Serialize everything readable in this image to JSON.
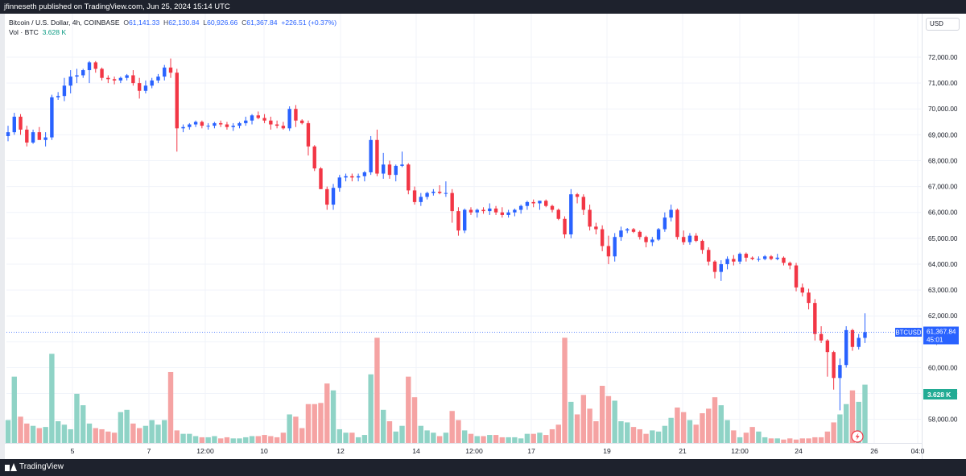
{
  "header": {
    "published": "jfinneseth published on TradingView.com, Jun 25, 2024 15:14 UTC"
  },
  "legend": {
    "symbol": "Bitcoin / U.S. Dollar, 4h, COINBASE",
    "open_label": "O",
    "open": "61,141.33",
    "high_label": "H",
    "high": "62,130.84",
    "low_label": "L",
    "low": "60,926.66",
    "close_label": "C",
    "close": "61,367.84",
    "change": "+226.51 (+0.37%)",
    "vol_label": "Vol · BTC",
    "vol_value": "3.628 K"
  },
  "currency": "USD",
  "footer": {
    "brand": "TradingView"
  },
  "colors": {
    "up": "#2962ff",
    "down": "#f23645",
    "vol_up": "#8fd3c6",
    "vol_down": "#f5a3a3",
    "price_line": "#2962ff",
    "vol_badge": "#22ab94"
  },
  "chart_data": {
    "type": "candlestick",
    "symbol": "BTCUSD",
    "interval": "4h",
    "y_ticks": [
      "72,000.00",
      "71,000.00",
      "70,000.00",
      "69,000.00",
      "68,000.00",
      "67,000.00",
      "66,000.00",
      "65,000.00",
      "64,000.00",
      "63,000.00",
      "62,000.00",
      "61,000.00",
      "60,000.00",
      "59,000.00",
      "58,000.00"
    ],
    "x_ticks": [
      "5",
      "7",
      "12:00",
      "10",
      "12",
      "14",
      "12:00",
      "17",
      "19",
      "21",
      "12:00",
      "24",
      "26",
      "04:0"
    ],
    "last_price_label": "BTCUSD",
    "last_price": "61,367.84",
    "countdown": "45:01",
    "volume_badge": "3.628 K",
    "ylim": [
      57500,
      72600
    ],
    "last_price_value": 61367.84,
    "candles": [
      [
        68950,
        69350,
        68750,
        69100
      ],
      [
        69100,
        69850,
        69000,
        69700
      ],
      [
        69700,
        69800,
        69000,
        69200
      ],
      [
        69200,
        69350,
        68550,
        68700
      ],
      [
        68700,
        69200,
        68650,
        69100
      ],
      [
        69100,
        69300,
        68850,
        68800
      ],
      [
        68800,
        69100,
        68550,
        68900
      ],
      [
        68900,
        70550,
        68800,
        70450
      ],
      [
        70450,
        70650,
        70350,
        70500
      ],
      [
        70500,
        71200,
        70300,
        70900
      ],
      [
        70900,
        71500,
        70600,
        71250
      ],
      [
        71250,
        71550,
        71000,
        71300
      ],
      [
        71300,
        71550,
        71200,
        71500
      ],
      [
        71500,
        71850,
        71000,
        71800
      ],
      [
        71800,
        71850,
        71400,
        71550
      ],
      [
        71550,
        71600,
        71100,
        71200
      ],
      [
        71200,
        71300,
        71000,
        71150
      ],
      [
        71150,
        71250,
        70950,
        71100
      ],
      [
        71100,
        71250,
        71000,
        71200
      ],
      [
        71200,
        71350,
        71100,
        71300
      ],
      [
        71300,
        71500,
        70900,
        71000
      ],
      [
        71000,
        71200,
        70400,
        70700
      ],
      [
        70700,
        71100,
        70600,
        70900
      ],
      [
        70900,
        71200,
        70800,
        71100
      ],
      [
        71100,
        71350,
        71000,
        71250
      ],
      [
        71250,
        71700,
        71100,
        71600
      ],
      [
        71600,
        71950,
        71200,
        71400
      ],
      [
        71400,
        71550,
        68350,
        69250
      ],
      [
        69250,
        69400,
        69100,
        69300
      ],
      [
        69300,
        69450,
        69200,
        69400
      ],
      [
        69400,
        69550,
        69300,
        69500
      ],
      [
        69500,
        69550,
        69250,
        69350
      ],
      [
        69350,
        69450,
        69200,
        69350
      ],
      [
        69350,
        69500,
        69250,
        69450
      ],
      [
        69450,
        69550,
        69300,
        69400
      ],
      [
        69400,
        69500,
        69200,
        69300
      ],
      [
        69300,
        69450,
        69150,
        69350
      ],
      [
        69350,
        69500,
        69250,
        69450
      ],
      [
        69450,
        69700,
        69350,
        69550
      ],
      [
        69550,
        69800,
        69400,
        69750
      ],
      [
        69750,
        69900,
        69600,
        69650
      ],
      [
        69650,
        69800,
        69450,
        69550
      ],
      [
        69550,
        69700,
        69200,
        69400
      ],
      [
        69400,
        69550,
        69250,
        69350
      ],
      [
        69350,
        69500,
        69200,
        69250
      ],
      [
        69250,
        70100,
        69150,
        70000
      ],
      [
        70000,
        70150,
        69300,
        69550
      ],
      [
        69550,
        69600,
        69400,
        69450
      ],
      [
        69450,
        69550,
        68200,
        68550
      ],
      [
        68550,
        68600,
        67600,
        67700
      ],
      [
        67700,
        67750,
        66900,
        66900
      ],
      [
        66900,
        67000,
        66100,
        66300
      ],
      [
        66300,
        67100,
        66100,
        66950
      ],
      [
        66950,
        67450,
        66800,
        67350
      ],
      [
        67350,
        67500,
        67200,
        67400
      ],
      [
        67400,
        67500,
        67200,
        67350
      ],
      [
        67350,
        67500,
        67200,
        67400
      ],
      [
        67400,
        67600,
        67200,
        67550
      ],
      [
        67550,
        68950,
        67450,
        68800
      ],
      [
        68800,
        69200,
        67400,
        67500
      ],
      [
        67500,
        68300,
        67300,
        67850
      ],
      [
        67850,
        68000,
        67300,
        67450
      ],
      [
        67450,
        67850,
        67200,
        67800
      ],
      [
        67800,
        68350,
        67750,
        67850
      ],
      [
        67850,
        67900,
        66700,
        66850
      ],
      [
        66850,
        67000,
        66300,
        66400
      ],
      [
        66400,
        66750,
        66250,
        66600
      ],
      [
        66600,
        66800,
        66500,
        66750
      ],
      [
        66750,
        66900,
        66650,
        66800
      ],
      [
        66800,
        67050,
        66700,
        66750
      ],
      [
        66750,
        67200,
        66600,
        66750
      ],
      [
        66750,
        66900,
        65600,
        66050
      ],
      [
        66050,
        66200,
        65100,
        65300
      ],
      [
        65300,
        66150,
        65200,
        66100
      ],
      [
        66100,
        66200,
        65900,
        66000
      ],
      [
        66000,
        66150,
        65800,
        66100
      ],
      [
        66100,
        66200,
        65950,
        66050
      ],
      [
        66050,
        66350,
        65900,
        66150
      ],
      [
        66150,
        66250,
        65900,
        66000
      ],
      [
        66000,
        66200,
        65800,
        65900
      ],
      [
        65900,
        66100,
        65800,
        66000
      ],
      [
        66000,
        66150,
        65850,
        66100
      ],
      [
        66100,
        66300,
        65950,
        66250
      ],
      [
        66250,
        66450,
        66100,
        66400
      ],
      [
        66400,
        66500,
        66200,
        66350
      ],
      [
        66350,
        66450,
        66100,
        66450
      ],
      [
        66450,
        66500,
        66200,
        66250
      ],
      [
        66250,
        66300,
        66000,
        66100
      ],
      [
        66100,
        66150,
        65700,
        65750
      ],
      [
        65750,
        65850,
        65000,
        65150
      ],
      [
        65150,
        66900,
        65000,
        66700
      ],
      [
        66700,
        66750,
        66350,
        66600
      ],
      [
        66600,
        66700,
        65900,
        66100
      ],
      [
        66100,
        66300,
        65300,
        65450
      ],
      [
        65450,
        65600,
        65150,
        65350
      ],
      [
        65350,
        65500,
        64500,
        64700
      ],
      [
        64700,
        65100,
        64000,
        64300
      ],
      [
        64300,
        65200,
        64100,
        65050
      ],
      [
        65050,
        65450,
        64900,
        65300
      ],
      [
        65300,
        65400,
        65200,
        65350
      ],
      [
        65350,
        65400,
        65200,
        65250
      ],
      [
        65250,
        65300,
        64950,
        65050
      ],
      [
        65050,
        65100,
        64650,
        64850
      ],
      [
        64850,
        65050,
        64700,
        64950
      ],
      [
        64950,
        65400,
        64900,
        65350
      ],
      [
        65350,
        66000,
        65250,
        65800
      ],
      [
        65800,
        66300,
        65650,
        66100
      ],
      [
        66100,
        66150,
        64950,
        65050
      ],
      [
        65050,
        65300,
        64750,
        64850
      ],
      [
        64850,
        65200,
        64750,
        65100
      ],
      [
        65100,
        65200,
        64850,
        64900
      ],
      [
        64900,
        64950,
        64400,
        64550
      ],
      [
        64550,
        64650,
        63950,
        64100
      ],
      [
        64100,
        64150,
        63450,
        63700
      ],
      [
        63700,
        64150,
        63350,
        64000
      ],
      [
        64000,
        64300,
        63800,
        64200
      ],
      [
        64200,
        64350,
        63950,
        64100
      ],
      [
        64100,
        64450,
        64000,
        64400
      ],
      [
        64400,
        64450,
        64100,
        64250
      ],
      [
        64250,
        64300,
        64150,
        64200
      ],
      [
        64200,
        64300,
        64100,
        64200
      ],
      [
        64200,
        64350,
        64150,
        64300
      ],
      [
        64300,
        64350,
        64150,
        64200
      ],
      [
        64200,
        64400,
        64150,
        64250
      ],
      [
        64250,
        64300,
        63950,
        64050
      ],
      [
        64050,
        64100,
        63800,
        63950
      ],
      [
        63950,
        64050,
        62950,
        63100
      ],
      [
        63100,
        63250,
        62750,
        62900
      ],
      [
        62900,
        63050,
        62250,
        62500
      ],
      [
        62500,
        62650,
        61050,
        61300
      ],
      [
        61300,
        61600,
        60950,
        61050
      ],
      [
        61050,
        61100,
        59650,
        60600
      ],
      [
        60600,
        60650,
        59150,
        59600
      ],
      [
        59600,
        60350,
        58350,
        60100
      ],
      [
        60100,
        61600,
        60000,
        61450
      ],
      [
        61450,
        61500,
        60650,
        60800
      ],
      [
        60800,
        61300,
        60700,
        61150
      ],
      [
        61150,
        62100,
        60950,
        61370
      ]
    ],
    "volume_scale": [
      0,
      1
    ],
    "volume": [
      0.2,
      0.58,
      0.23,
      0.17,
      0.15,
      0.13,
      0.14,
      0.78,
      0.19,
      0.16,
      0.12,
      0.43,
      0.33,
      0.17,
      0.13,
      0.12,
      0.1,
      0.09,
      0.27,
      0.29,
      0.17,
      0.13,
      0.15,
      0.2,
      0.16,
      0.2,
      0.62,
      0.11,
      0.08,
      0.08,
      0.06,
      0.05,
      0.05,
      0.06,
      0.04,
      0.05,
      0.04,
      0.04,
      0.05,
      0.06,
      0.06,
      0.07,
      0.06,
      0.05,
      0.09,
      0.25,
      0.23,
      0.13,
      0.34,
      0.34,
      0.35,
      0.52,
      0.46,
      0.12,
      0.09,
      0.09,
      0.05,
      0.07,
      0.6,
      0.92,
      0.29,
      0.19,
      0.1,
      0.15,
      0.58,
      0.4,
      0.15,
      0.11,
      0.09,
      0.06,
      0.09,
      0.28,
      0.2,
      0.11,
      0.08,
      0.06,
      0.06,
      0.07,
      0.07,
      0.05,
      0.05,
      0.05,
      0.04,
      0.08,
      0.08,
      0.09,
      0.07,
      0.12,
      0.16,
      0.92,
      0.36,
      0.25,
      0.42,
      0.3,
      0.19,
      0.5,
      0.41,
      0.37,
      0.19,
      0.18,
      0.14,
      0.12,
      0.08,
      0.11,
      0.1,
      0.15,
      0.22,
      0.31,
      0.27,
      0.2,
      0.16,
      0.26,
      0.3,
      0.4,
      0.33,
      0.2,
      0.11,
      0.05,
      0.09,
      0.14,
      0.1,
      0.05,
      0.04,
      0.04,
      0.03,
      0.04,
      0.03,
      0.04,
      0.04,
      0.05,
      0.05,
      0.1,
      0.18,
      0.25,
      0.34,
      0.46,
      0.36,
      0.51,
      0.69,
      0.46,
      0.26,
      0.2,
      0.13,
      0.26,
      0.19,
      0.45
    ]
  }
}
